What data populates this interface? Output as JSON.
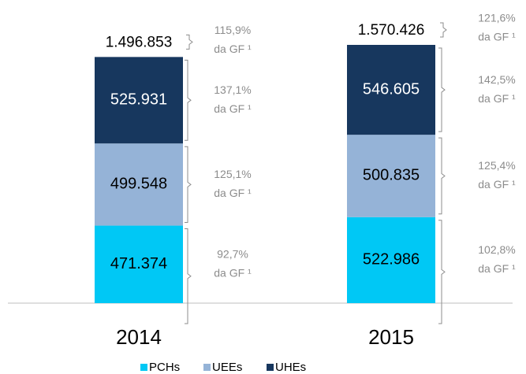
{
  "chart_data": {
    "type": "stacked_bar",
    "categories": [
      "2014",
      "2015"
    ],
    "series": [
      {
        "name": "PCHs",
        "color": "#00c8f5",
        "values": [
          471374,
          522986
        ],
        "value_labels": [
          "471.374",
          "522.986"
        ],
        "annotations": [
          [
            "92,7%",
            "da GF ¹"
          ],
          [
            "102,8%",
            "da GF ¹"
          ]
        ]
      },
      {
        "name": "UEEs",
        "color": "#95b3d7",
        "values": [
          499548,
          500835
        ],
        "value_labels": [
          "499.548",
          "500.835"
        ],
        "annotations": [
          [
            "125,1%",
            "da GF ¹"
          ],
          [
            "125,4%",
            "da GF ¹"
          ]
        ]
      },
      {
        "name": "UHEs",
        "color": "#17375e",
        "values": [
          525931,
          546605
        ],
        "value_labels": [
          "525.931",
          "546.605"
        ],
        "annotations": [
          [
            "137,1%",
            "da GF ¹"
          ],
          [
            "142,5%",
            "da GF ¹"
          ]
        ]
      }
    ],
    "totals": [
      1496853,
      1570426
    ],
    "total_labels": [
      "1.496.853",
      "1.570.426"
    ],
    "total_annotations": [
      [
        "115,9%",
        "da GF ¹"
      ],
      [
        "121,6%",
        "da GF ¹"
      ]
    ],
    "legend": "bottom"
  }
}
